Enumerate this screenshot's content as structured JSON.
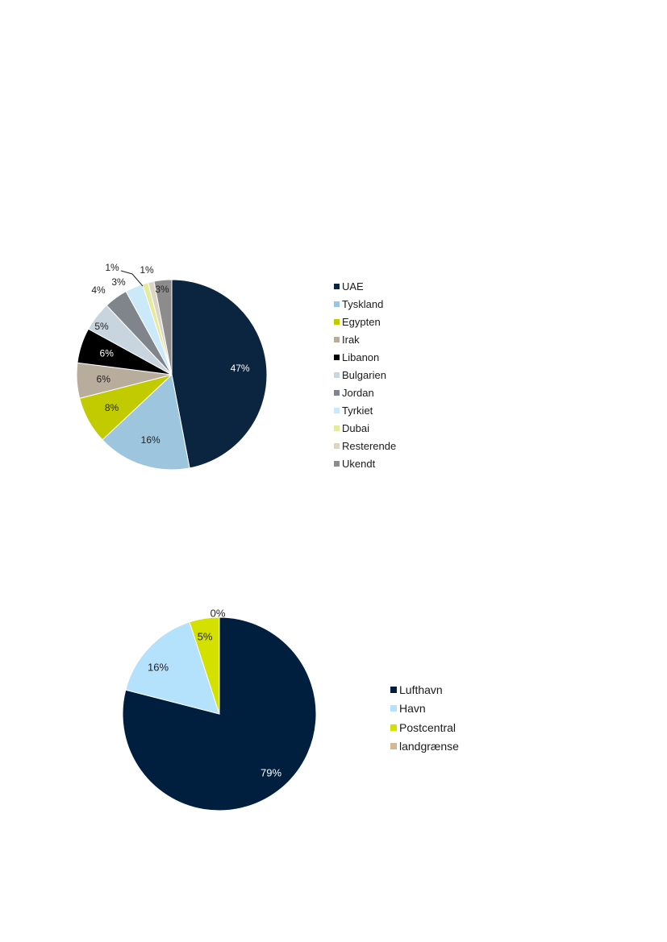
{
  "chart_data": [
    {
      "type": "pie",
      "title": "",
      "categories": [
        "UAE",
        "Tyskland",
        "Egypten",
        "Irak",
        "Libanon",
        "Bulgarien",
        "Jordan",
        "Tyrkiet",
        "Dubai",
        "Resterende",
        "Ukendt"
      ],
      "values": [
        47,
        16,
        8,
        6,
        6,
        5,
        4,
        3,
        1,
        1,
        3
      ],
      "labels": [
        "47%",
        "16%",
        "8%",
        "6%",
        "6%",
        "5%",
        "4%",
        "3%",
        "1%",
        "1%",
        "3%"
      ],
      "colors": [
        "#0b2540",
        "#9dc6de",
        "#c1cb00",
        "#b8ad9c",
        "#000000",
        "#c8d4de",
        "#7f858b",
        "#cce9f9",
        "#e6eb9c",
        "#dcd5c6",
        "#8c8c8c"
      ],
      "label_colors": [
        "#ffffff",
        "#222222",
        "#222222",
        "#222222",
        "#ffffff",
        "#222222",
        "#222222",
        "#222222",
        "#222222",
        "#222222",
        "#222222"
      ],
      "legend": "right"
    },
    {
      "type": "pie",
      "title": "",
      "categories": [
        "Lufthavn",
        "Havn",
        "Postcentral",
        "landgrænse"
      ],
      "values": [
        79,
        16,
        5,
        0
      ],
      "labels": [
        "79%",
        "16%",
        "5%",
        "0%"
      ],
      "colors": [
        "#001f3f",
        "#b4e1fb",
        "#d4e000",
        "#d4b896"
      ],
      "label_colors": [
        "#ffffff",
        "#222222",
        "#222222",
        "#222222"
      ],
      "legend": "right"
    }
  ]
}
